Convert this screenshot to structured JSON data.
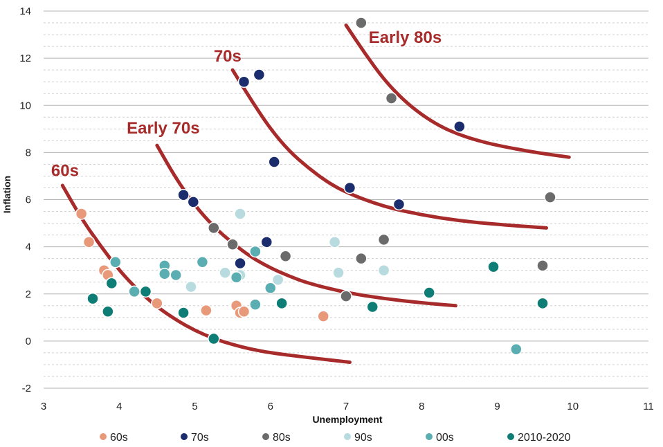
{
  "chart_data": {
    "type": "scatter",
    "title": "",
    "xlabel": "Unemployment",
    "ylabel": "Inflation",
    "xlim": [
      3,
      11
    ],
    "ylim": [
      -2,
      14
    ],
    "x_ticks": [
      "3",
      "4",
      "5",
      "6",
      "7",
      "8",
      "9",
      "10",
      "11"
    ],
    "y_ticks": [
      "-2",
      "0",
      "2",
      "4",
      "6",
      "8",
      "10",
      "12",
      "14"
    ],
    "grid": "horizontal",
    "legend_position": "bottom",
    "series": [
      {
        "name": "60s",
        "color": "#e8997a",
        "points": [
          [
            3.5,
            5.4
          ],
          [
            3.6,
            4.2
          ],
          [
            3.8,
            3.0
          ],
          [
            3.85,
            2.8
          ],
          [
            4.5,
            1.6
          ],
          [
            5.15,
            1.3
          ],
          [
            5.55,
            1.5
          ],
          [
            5.6,
            1.2
          ],
          [
            5.65,
            1.25
          ],
          [
            6.7,
            1.05
          ]
        ]
      },
      {
        "name": "70s",
        "color": "#1c2d6e",
        "points": [
          [
            4.85,
            6.2
          ],
          [
            4.98,
            5.9
          ],
          [
            5.6,
            3.3
          ],
          [
            5.65,
            11.0
          ],
          [
            5.85,
            11.3
          ],
          [
            5.95,
            4.2
          ],
          [
            6.05,
            7.6
          ],
          [
            7.05,
            6.5
          ],
          [
            7.7,
            5.8
          ],
          [
            8.5,
            9.1
          ]
        ]
      },
      {
        "name": "80s",
        "color": "#6b6b6b",
        "points": [
          [
            5.25,
            4.8
          ],
          [
            5.5,
            4.1
          ],
          [
            6.2,
            3.6
          ],
          [
            7.0,
            1.9
          ],
          [
            7.2,
            13.5
          ],
          [
            7.2,
            3.5
          ],
          [
            7.5,
            4.3
          ],
          [
            7.6,
            10.3
          ],
          [
            9.6,
            3.2
          ],
          [
            9.7,
            6.1
          ]
        ]
      },
      {
        "name": "90s",
        "color": "#b7dbdf",
        "points": [
          [
            4.95,
            2.3
          ],
          [
            5.4,
            2.9
          ],
          [
            5.6,
            2.8
          ],
          [
            5.6,
            5.4
          ],
          [
            6.1,
            2.6
          ],
          [
            6.85,
            4.2
          ],
          [
            6.9,
            2.9
          ],
          [
            7.5,
            3.0
          ]
        ]
      },
      {
        "name": "00s",
        "color": "#5aadb0",
        "points": [
          [
            3.95,
            3.35
          ],
          [
            4.2,
            2.1
          ],
          [
            4.6,
            3.2
          ],
          [
            4.6,
            2.85
          ],
          [
            4.75,
            2.8
          ],
          [
            5.1,
            3.35
          ],
          [
            5.55,
            2.7
          ],
          [
            5.8,
            3.8
          ],
          [
            5.8,
            1.55
          ],
          [
            6.0,
            2.25
          ],
          [
            9.25,
            -0.35
          ]
        ]
      },
      {
        "name": "2010-2020",
        "color": "#0e7d76",
        "points": [
          [
            3.65,
            1.8
          ],
          [
            3.85,
            1.25
          ],
          [
            3.9,
            2.45
          ],
          [
            4.35,
            2.1
          ],
          [
            4.85,
            1.2
          ],
          [
            5.25,
            0.1
          ],
          [
            6.15,
            1.6
          ],
          [
            7.35,
            1.45
          ],
          [
            8.1,
            2.05
          ],
          [
            8.95,
            3.15
          ],
          [
            9.6,
            1.6
          ]
        ]
      }
    ],
    "curves": [
      {
        "label": "60s",
        "color": "#a82b2b",
        "points": [
          [
            3.25,
            6.6
          ],
          [
            3.5,
            5.2
          ],
          [
            3.75,
            4.05
          ],
          [
            4.0,
            3.0
          ],
          [
            4.25,
            2.15
          ],
          [
            4.5,
            1.45
          ],
          [
            4.75,
            0.9
          ],
          [
            5.0,
            0.45
          ],
          [
            5.25,
            0.1
          ],
          [
            5.5,
            -0.15
          ],
          [
            5.75,
            -0.35
          ],
          [
            6.0,
            -0.5
          ],
          [
            6.5,
            -0.7
          ],
          [
            7.05,
            -0.9
          ]
        ]
      },
      {
        "label": "Early 70s",
        "color": "#a82b2b",
        "points": [
          [
            4.5,
            8.3
          ],
          [
            4.75,
            6.9
          ],
          [
            5.0,
            5.75
          ],
          [
            5.25,
            4.85
          ],
          [
            5.5,
            4.15
          ],
          [
            5.75,
            3.55
          ],
          [
            6.0,
            3.1
          ],
          [
            6.25,
            2.75
          ],
          [
            6.5,
            2.45
          ],
          [
            7.0,
            2.05
          ],
          [
            7.5,
            1.8
          ],
          [
            8.0,
            1.62
          ],
          [
            8.45,
            1.5
          ]
        ]
      },
      {
        "label": "70s",
        "color": "#a82b2b",
        "points": [
          [
            5.5,
            11.5
          ],
          [
            5.75,
            10.2
          ],
          [
            6.0,
            9.0
          ],
          [
            6.25,
            8.05
          ],
          [
            6.5,
            7.35
          ],
          [
            6.75,
            6.75
          ],
          [
            7.0,
            6.3
          ],
          [
            7.5,
            5.7
          ],
          [
            8.0,
            5.35
          ],
          [
            8.5,
            5.1
          ],
          [
            9.0,
            4.95
          ],
          [
            9.65,
            4.8
          ]
        ]
      },
      {
        "label": "Early 80s",
        "color": "#a82b2b",
        "points": [
          [
            7.0,
            13.4
          ],
          [
            7.25,
            12.2
          ],
          [
            7.5,
            11.1
          ],
          [
            7.75,
            10.25
          ],
          [
            8.0,
            9.6
          ],
          [
            8.25,
            9.1
          ],
          [
            8.5,
            8.75
          ],
          [
            8.75,
            8.5
          ],
          [
            9.0,
            8.3
          ],
          [
            9.5,
            8.0
          ],
          [
            9.95,
            7.8
          ]
        ]
      }
    ],
    "curve_labels": [
      {
        "text": "60s",
        "x": 3.1,
        "y": 7.0
      },
      {
        "text": "Early 70s",
        "x": 4.1,
        "y": 8.8
      },
      {
        "text": "70s",
        "x": 5.25,
        "y": 11.85
      },
      {
        "text": "Early 80s",
        "x": 7.3,
        "y": 12.65
      }
    ]
  }
}
